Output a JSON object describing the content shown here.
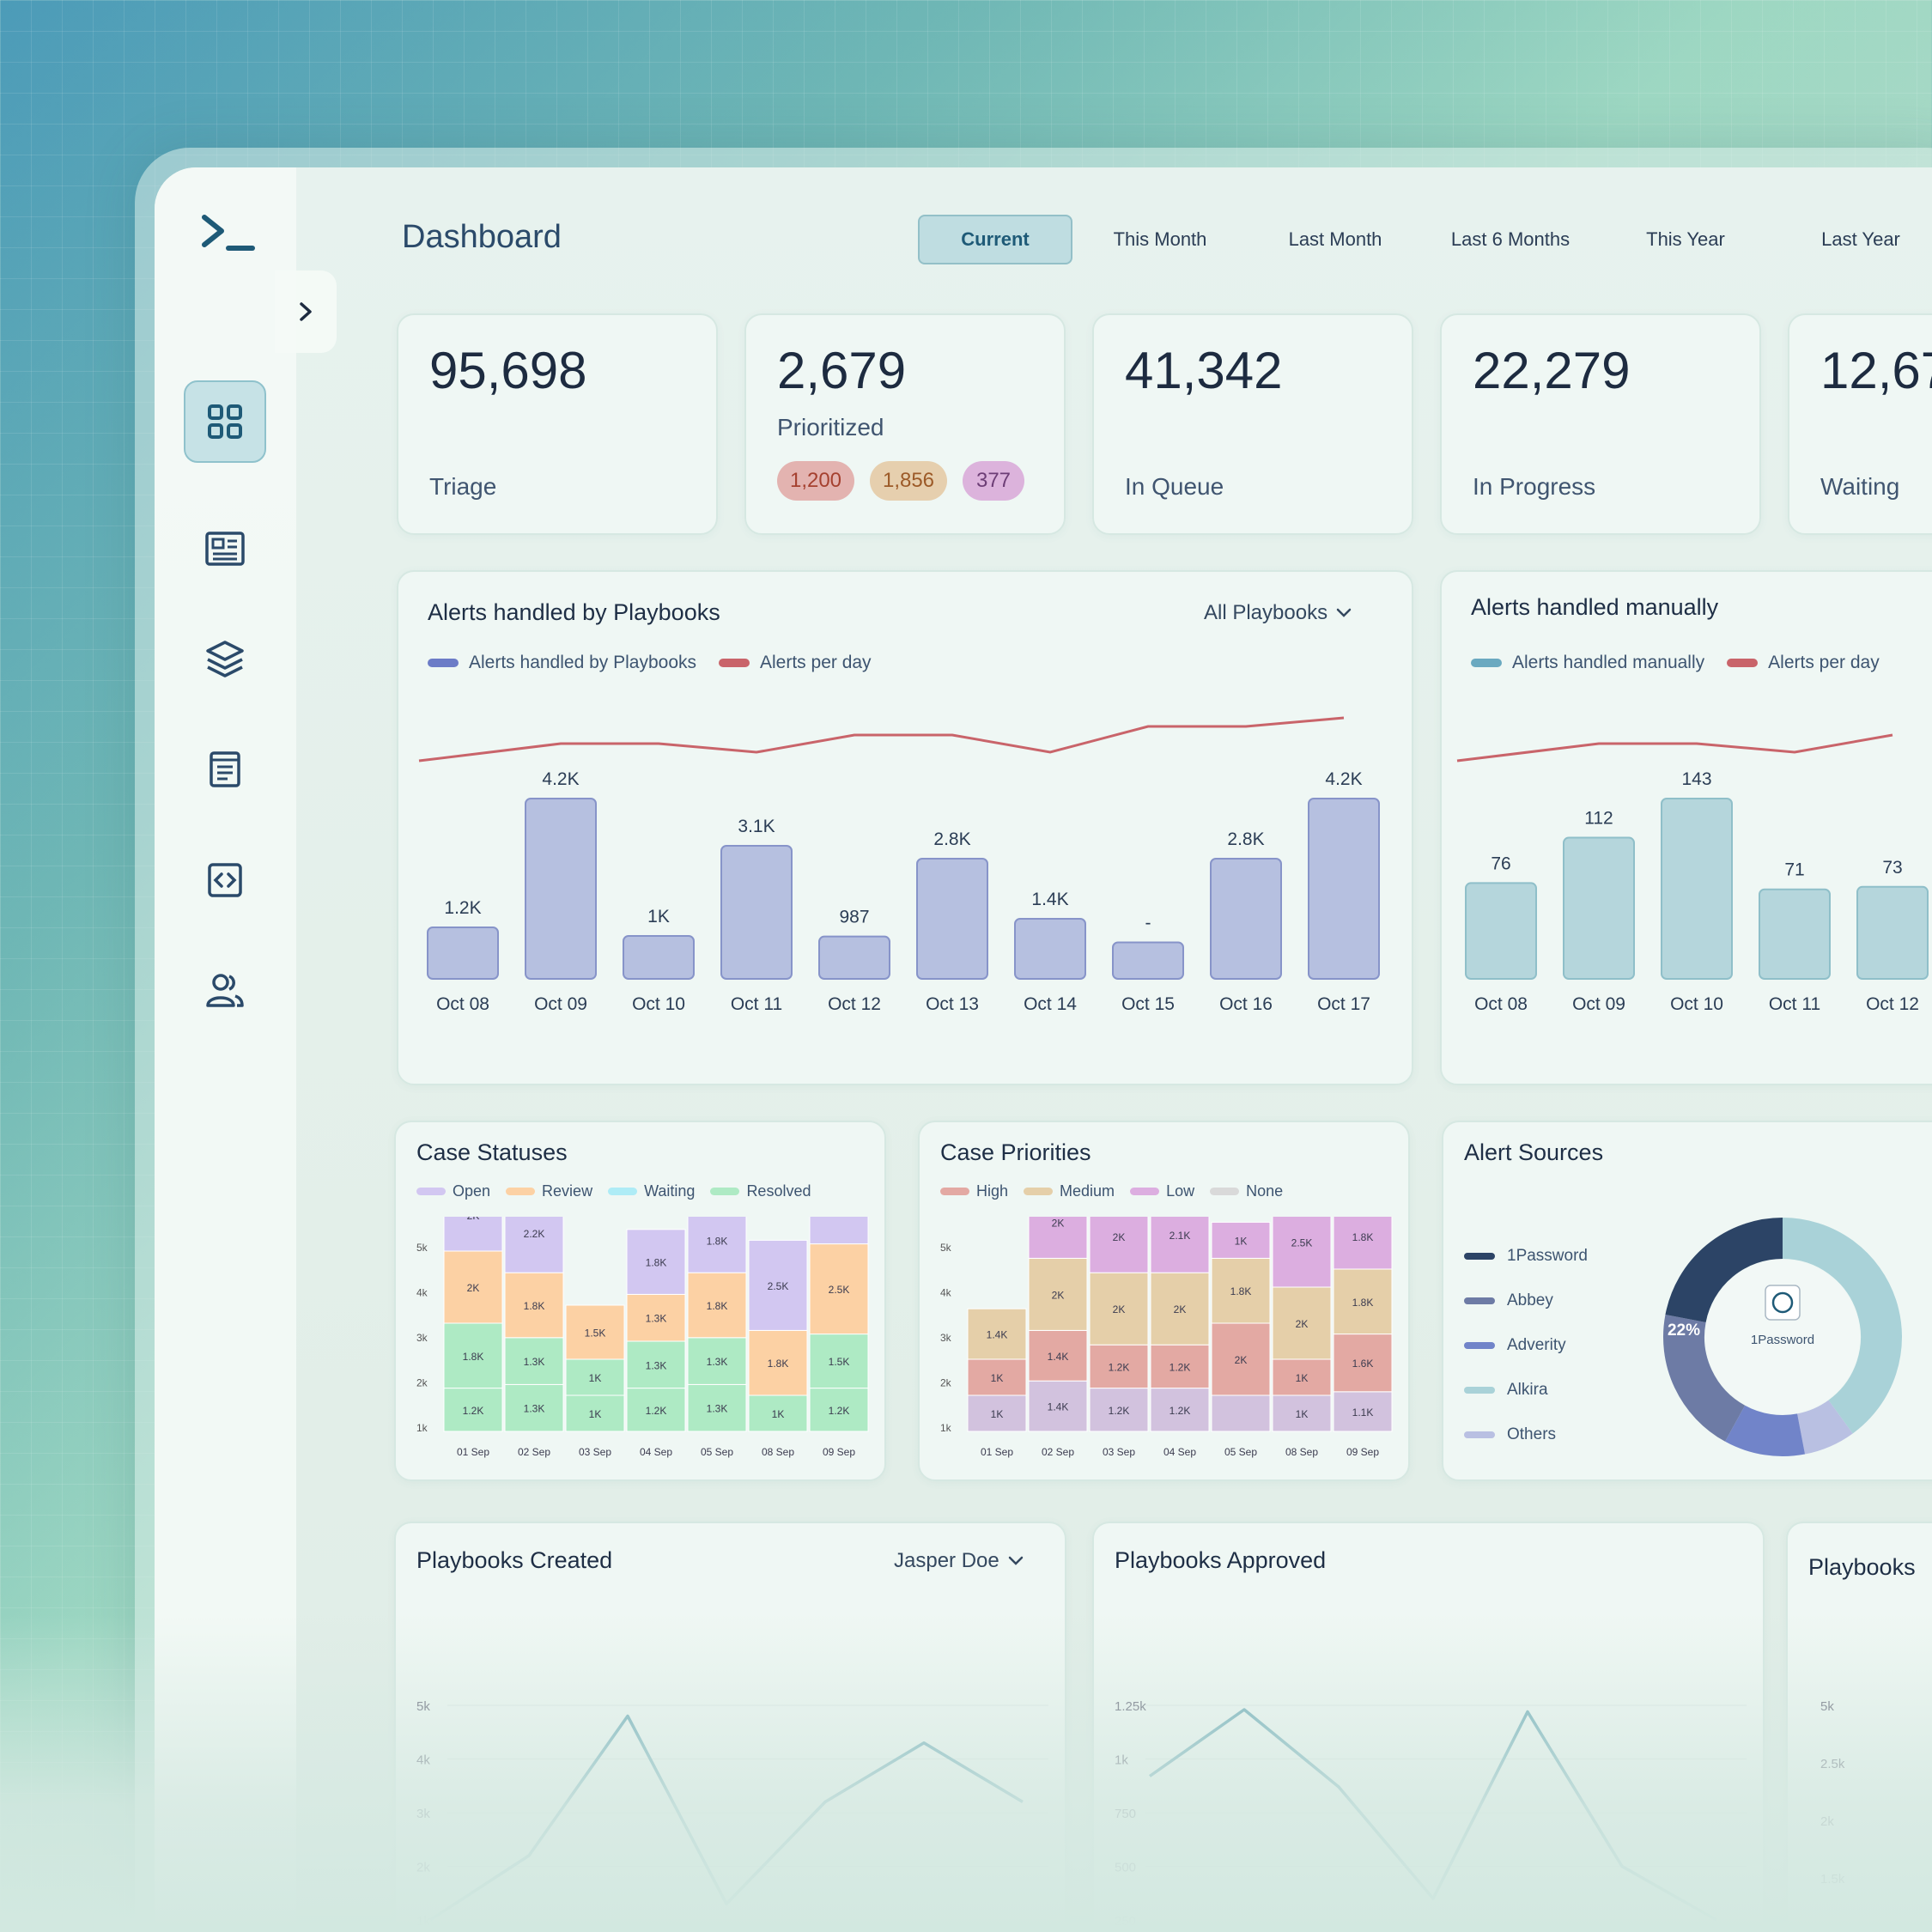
{
  "header": {
    "title": "Dashboard",
    "tabs": [
      "Current",
      "This Month",
      "Last Month",
      "Last 6 Months",
      "This Year",
      "Last Year"
    ]
  },
  "stats": [
    {
      "value": "95,698",
      "label": "Triage"
    },
    {
      "value": "2,679",
      "label": "Prioritized",
      "pills": [
        "1,200",
        "1,856",
        "377"
      ]
    },
    {
      "value": "41,342",
      "label": "In Queue"
    },
    {
      "value": "22,279",
      "label": "In Progress"
    },
    {
      "value": "12,67",
      "label": "Waiting"
    }
  ],
  "playbooks_card": {
    "title": "Alerts handled by Playbooks",
    "filter": "All Playbooks",
    "legend": [
      "Alerts handled by Playbooks",
      "Alerts per day"
    ]
  },
  "manual_card": {
    "title": "Alerts handled manually",
    "legend": [
      "Alerts handled manually",
      "Alerts per day"
    ]
  },
  "case_statuses": {
    "title": "Case Statuses",
    "legend": [
      "Open",
      "Review",
      "Waiting",
      "Resolved"
    ]
  },
  "case_priorities": {
    "title": "Case Priorities",
    "legend": [
      "High",
      "Medium",
      "Low",
      "None"
    ]
  },
  "alert_sources": {
    "title": "Alert Sources",
    "legend": [
      "1Password",
      "Abbey",
      "Adverity",
      "Alkira",
      "Others"
    ],
    "center_label": "1Password",
    "percent_label": "22%"
  },
  "playbooks_created": {
    "title": "Playbooks Created",
    "filter": "Jasper Doe"
  },
  "playbooks_approved": {
    "title": "Playbooks Approved"
  },
  "playbooks_third": {
    "title": "Playbooks"
  },
  "colors": {
    "accent": "#1e5a77",
    "bar_playbooks": "#b6c0e0",
    "bar_manual": "#b5d6dc",
    "line": "#c9646a",
    "teal_line": "#6aa9b6"
  },
  "chart_data": [
    {
      "type": "bar",
      "title": "Alerts handled by Playbooks",
      "categories": [
        "Oct 08",
        "Oct 09",
        "Oct 10",
        "Oct 11",
        "Oct 12",
        "Oct 13",
        "Oct 14",
        "Oct 15",
        "Oct 16",
        "Oct 17"
      ],
      "values": [
        1200,
        4200,
        1000,
        3100,
        987,
        2800,
        1400,
        850,
        2800,
        4200
      ],
      "labels": [
        "1.2K",
        "4.2K",
        "1K",
        "3.1K",
        "987",
        "2.8K",
        "1.4K",
        "-",
        "2.8K",
        "4.2K"
      ],
      "line_series": {
        "name": "Alerts per day",
        "values": [
          3,
          5,
          5,
          4,
          6,
          6,
          4,
          7,
          7,
          8
        ]
      }
    },
    {
      "type": "bar",
      "title": "Alerts handled manually",
      "categories": [
        "Oct 08",
        "Oct 09",
        "Oct 10",
        "Oct 11",
        "Oct 12"
      ],
      "values": [
        76,
        112,
        143,
        71,
        73
      ],
      "labels": [
        "76",
        "112",
        "143",
        "71",
        "73"
      ],
      "line_series": {
        "name": "Alerts per day",
        "values": [
          3,
          5,
          5,
          4,
          6
        ]
      }
    },
    {
      "type": "bar",
      "title": "Case Statuses",
      "stacked": true,
      "y_ticks": [
        "5k",
        "4k",
        "3k",
        "2k",
        "1k"
      ],
      "ymax": 5000,
      "categories": [
        "01 Sep",
        "02 Sep",
        "03 Sep",
        "04 Sep",
        "05 Sep",
        "08 Sep",
        "09 Sep"
      ],
      "series": [
        {
          "name": "Resolved",
          "values": [
            1200,
            1300,
            1000,
            1200,
            1300,
            1000,
            1200
          ],
          "labels": [
            "1.2K",
            "1.3K",
            "1K",
            "1.2K",
            "1.3K",
            "1K",
            "1.2K"
          ]
        },
        {
          "name": "Waiting",
          "values": [
            0,
            0,
            0,
            0,
            0,
            0,
            0
          ],
          "labels": [
            "",
            "",
            "",
            "",
            "",
            "",
            ""
          ]
        },
        {
          "name": "Resolved2",
          "values": [
            1800,
            1300,
            1000,
            1300,
            1300,
            0,
            1500
          ],
          "labels": [
            "1.8K",
            "1.3K",
            "1K",
            "1.3K",
            "1.3K",
            "",
            "1.5K"
          ]
        },
        {
          "name": "Review",
          "values": [
            2000,
            1800,
            1500,
            1300,
            1800,
            1800,
            2500
          ],
          "labels": [
            "2K",
            "1.8K",
            "1.5K",
            "1.3K",
            "1.8K",
            "1.8K",
            "2.5K"
          ]
        },
        {
          "name": "Open",
          "values": [
            2000,
            2200,
            0,
            1800,
            1800,
            2500,
            2500
          ],
          "labels": [
            "2K",
            "2.2K",
            "",
            "1.8K",
            "1.8K",
            "2.5K",
            "2.5K"
          ]
        }
      ]
    },
    {
      "type": "bar",
      "title": "Case Priorities",
      "stacked": true,
      "y_ticks": [
        "5k",
        "4k",
        "3k",
        "2k",
        "1k"
      ],
      "ymax": 5000,
      "categories": [
        "01 Sep",
        "02 Sep",
        "03 Sep",
        "04 Sep",
        "05 Sep",
        "08 Sep",
        "09 Sep"
      ],
      "series": [
        {
          "name": "Low",
          "values": [
            1000,
            1400,
            1200,
            1200,
            1000,
            1000,
            1100
          ],
          "labels": [
            "1K",
            "1.4K",
            "1.2K",
            "1.2K",
            "",
            "1K",
            "1.1K"
          ]
        },
        {
          "name": "High",
          "values": [
            1000,
            1400,
            1200,
            1200,
            2000,
            1000,
            1600
          ],
          "labels": [
            "1K",
            "1.4K",
            "1.2K",
            "1.2K",
            "2K",
            "1K",
            "1.6K"
          ]
        },
        {
          "name": "Medium",
          "values": [
            1400,
            2000,
            2000,
            2000,
            1800,
            2000,
            1800
          ],
          "labels": [
            "1.4K",
            "2K",
            "2K",
            "2K",
            "1.8K",
            "2K",
            "1.8K"
          ]
        },
        {
          "name": "None",
          "values": [
            0,
            2000,
            2000,
            2100,
            1000,
            2500,
            1800
          ],
          "labels": [
            "",
            "2K",
            "2K",
            "2.1K",
            "1K",
            "2.5K",
            "1.8K"
          ]
        }
      ]
    },
    {
      "type": "pie",
      "title": "Alert Sources",
      "labels": [
        "1Password",
        "Abbey",
        "Adverity",
        "Alkira",
        "Others"
      ],
      "values": [
        22,
        20,
        11,
        40,
        7
      ]
    },
    {
      "type": "line",
      "title": "Playbooks Created",
      "y_ticks": [
        "5k",
        "4k",
        "3k",
        "2k",
        "1k"
      ],
      "ylim": [
        1000,
        5000
      ],
      "values": [
        1000,
        2200,
        4800,
        1300,
        3200,
        4300,
        3200
      ]
    },
    {
      "type": "line",
      "title": "Playbooks Approved",
      "y_ticks": [
        "1.25k",
        "1k",
        "750",
        "500",
        "250"
      ],
      "ylim": [
        250,
        1250
      ],
      "values": [
        920,
        1230,
        870,
        350,
        1220,
        500,
        250
      ]
    },
    {
      "type": "line",
      "title": "Playbooks",
      "y_ticks": [
        "5k",
        "2.5k",
        "2k",
        "1.5k"
      ],
      "values": [
        1550,
        1100
      ]
    }
  ]
}
